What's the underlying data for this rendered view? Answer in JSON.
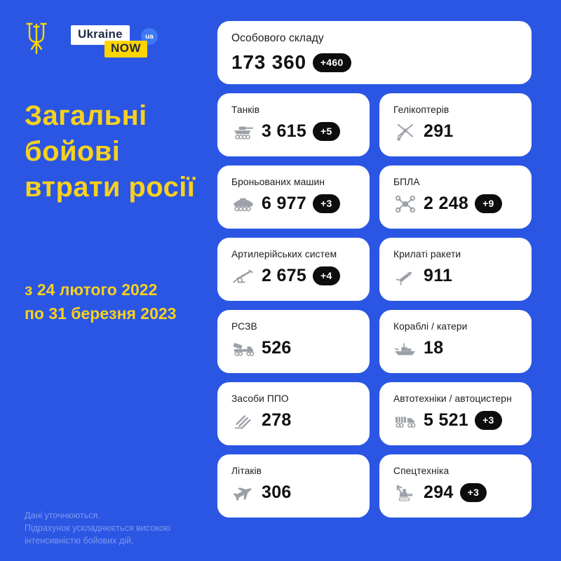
{
  "page": {
    "background_color": "#2b56e3",
    "accent_yellow": "#f7d11e",
    "card_color": "#ffffff",
    "badge_color": "#0d0d0f",
    "icon_color": "#9ca1a7"
  },
  "logo": {
    "trident_icon": "trident-icon",
    "ukraine_label": "Ukraine",
    "now_label": "NOW",
    "ua_label": "ua"
  },
  "header": {
    "title": "Загальні бойові втрати росії",
    "date_line1": "з 24 лютого 2022",
    "date_line2": "по 31 березня 2023"
  },
  "footnote": {
    "line1": "Дані уточнюються.",
    "line2": "Підрахунок ускладнюється високою",
    "line3": "інтенсивністю бойових дій."
  },
  "cards": [
    {
      "label": "Особового складу",
      "value": "173 360",
      "delta": "+460",
      "icon": null,
      "full_width": true
    },
    {
      "label": "Танків",
      "value": "3 615",
      "delta": "+5",
      "icon": "tank-icon"
    },
    {
      "label": "Гелікоптерів",
      "value": "291",
      "delta": null,
      "icon": "helicopter-icon"
    },
    {
      "label": "Броньованих машин",
      "value": "6 977",
      "delta": "+3",
      "icon": "apc-icon"
    },
    {
      "label": "БПЛА",
      "value": "2 248",
      "delta": "+9",
      "icon": "drone-icon"
    },
    {
      "label": "Артилерійських систем",
      "value": "2 675",
      "delta": "+4",
      "icon": "artillery-icon"
    },
    {
      "label": "Крилаті ракети",
      "value": "911",
      "delta": null,
      "icon": "missile-icon"
    },
    {
      "label": "РСЗВ",
      "value": "526",
      "delta": null,
      "icon": "mlrs-icon"
    },
    {
      "label": "Кораблі / катери",
      "value": "18",
      "delta": null,
      "icon": "ship-icon"
    },
    {
      "label": "Засоби ППО",
      "value": "278",
      "delta": null,
      "icon": "air-defense-icon"
    },
    {
      "label": "Автотехніки / автоцистерн",
      "value": "5 521",
      "delta": "+3",
      "icon": "truck-icon"
    },
    {
      "label": "Літаків",
      "value": "306",
      "delta": null,
      "icon": "jet-icon"
    },
    {
      "label": "Спецтехніка",
      "value": "294",
      "delta": "+3",
      "icon": "crane-icon"
    }
  ],
  "chart_data": {
    "type": "table",
    "title": "Загальні бойові втрати росії",
    "period": "з 24 лютого 2022 по 31 березня 2023",
    "categories": [
      "Особового складу",
      "Танків",
      "Гелікоптерів",
      "Броньованих машин",
      "БПЛА",
      "Артилерійських систем",
      "Крилаті ракети",
      "РСЗВ",
      "Кораблі / катери",
      "Засоби ППО",
      "Автотехніки / автоцистерн",
      "Літаків",
      "Спецтехніка"
    ],
    "values": [
      173360,
      3615,
      291,
      6977,
      2248,
      2675,
      911,
      526,
      18,
      278,
      5521,
      306,
      294
    ],
    "daily_increase": [
      460,
      5,
      null,
      3,
      9,
      4,
      null,
      null,
      null,
      null,
      3,
      null,
      3
    ]
  }
}
